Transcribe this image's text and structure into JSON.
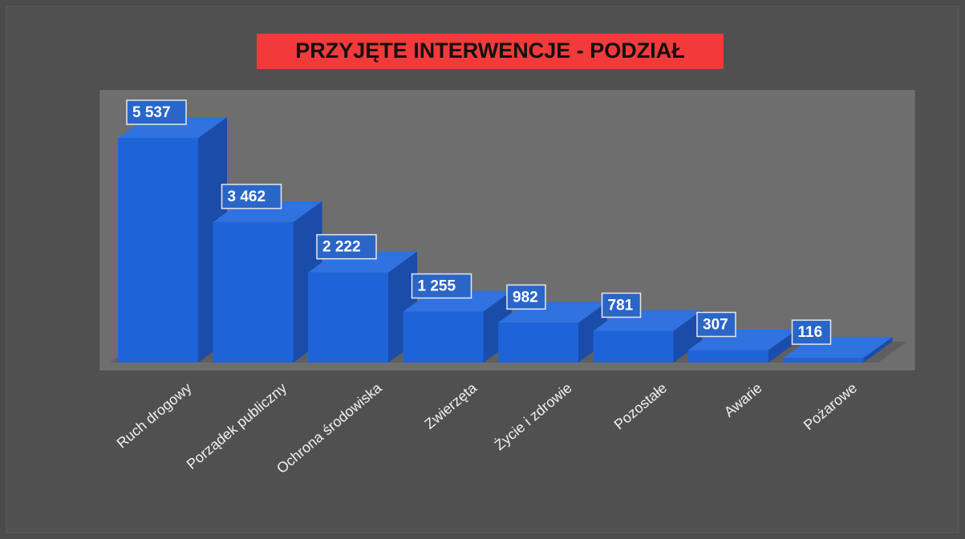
{
  "chart_data": {
    "type": "bar3d",
    "title": "PRZYJĘTE INTERWENCJE - PODZIAŁ",
    "categories": [
      "Ruch drogowy",
      "Porządek publiczny",
      "Ochrona środowiska",
      "Zwierzęta",
      "Życie i zdrowie",
      "Pozostałe",
      "Awarie",
      "Pożarowe"
    ],
    "values": [
      5537,
      3462,
      2222,
      1255,
      982,
      781,
      307,
      116
    ],
    "value_labels": [
      "5 537",
      "3 462",
      "2 222",
      "1 255",
      "982",
      "781",
      "307",
      "116"
    ],
    "color": "#1f63d8"
  }
}
